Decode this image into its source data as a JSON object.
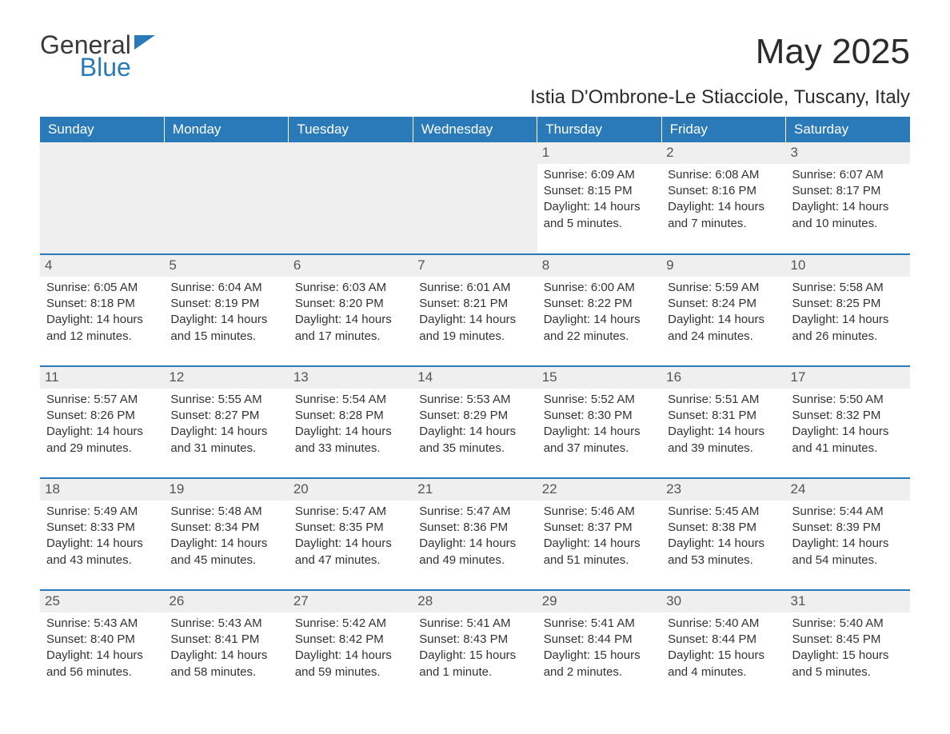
{
  "logo": {
    "word1": "General",
    "word2": "Blue"
  },
  "title": "May 2025",
  "location": "Istia D'Ombrone-Le Stiacciole, Tuscany, Italy",
  "colors": {
    "brand": "#2a7ab9",
    "header_text": "#ffffff",
    "cell_stripe": "#efefef",
    "text": "#333333",
    "bg": "#ffffff"
  },
  "fonts": {
    "title_pt": 44,
    "location_pt": 24,
    "dayhead_pt": 17,
    "body_pt": 15
  },
  "day_headers": [
    "Sunday",
    "Monday",
    "Tuesday",
    "Wednesday",
    "Thursday",
    "Friday",
    "Saturday"
  ],
  "weeks": [
    [
      null,
      null,
      null,
      null,
      {
        "n": "1",
        "sunrise": "6:09 AM",
        "sunset": "8:15 PM",
        "daylight": "14 hours and 5 minutes."
      },
      {
        "n": "2",
        "sunrise": "6:08 AM",
        "sunset": "8:16 PM",
        "daylight": "14 hours and 7 minutes."
      },
      {
        "n": "3",
        "sunrise": "6:07 AM",
        "sunset": "8:17 PM",
        "daylight": "14 hours and 10 minutes."
      }
    ],
    [
      {
        "n": "4",
        "sunrise": "6:05 AM",
        "sunset": "8:18 PM",
        "daylight": "14 hours and 12 minutes."
      },
      {
        "n": "5",
        "sunrise": "6:04 AM",
        "sunset": "8:19 PM",
        "daylight": "14 hours and 15 minutes."
      },
      {
        "n": "6",
        "sunrise": "6:03 AM",
        "sunset": "8:20 PM",
        "daylight": "14 hours and 17 minutes."
      },
      {
        "n": "7",
        "sunrise": "6:01 AM",
        "sunset": "8:21 PM",
        "daylight": "14 hours and 19 minutes."
      },
      {
        "n": "8",
        "sunrise": "6:00 AM",
        "sunset": "8:22 PM",
        "daylight": "14 hours and 22 minutes."
      },
      {
        "n": "9",
        "sunrise": "5:59 AM",
        "sunset": "8:24 PM",
        "daylight": "14 hours and 24 minutes."
      },
      {
        "n": "10",
        "sunrise": "5:58 AM",
        "sunset": "8:25 PM",
        "daylight": "14 hours and 26 minutes."
      }
    ],
    [
      {
        "n": "11",
        "sunrise": "5:57 AM",
        "sunset": "8:26 PM",
        "daylight": "14 hours and 29 minutes."
      },
      {
        "n": "12",
        "sunrise": "5:55 AM",
        "sunset": "8:27 PM",
        "daylight": "14 hours and 31 minutes."
      },
      {
        "n": "13",
        "sunrise": "5:54 AM",
        "sunset": "8:28 PM",
        "daylight": "14 hours and 33 minutes."
      },
      {
        "n": "14",
        "sunrise": "5:53 AM",
        "sunset": "8:29 PM",
        "daylight": "14 hours and 35 minutes."
      },
      {
        "n": "15",
        "sunrise": "5:52 AM",
        "sunset": "8:30 PM",
        "daylight": "14 hours and 37 minutes."
      },
      {
        "n": "16",
        "sunrise": "5:51 AM",
        "sunset": "8:31 PM",
        "daylight": "14 hours and 39 minutes."
      },
      {
        "n": "17",
        "sunrise": "5:50 AM",
        "sunset": "8:32 PM",
        "daylight": "14 hours and 41 minutes."
      }
    ],
    [
      {
        "n": "18",
        "sunrise": "5:49 AM",
        "sunset": "8:33 PM",
        "daylight": "14 hours and 43 minutes."
      },
      {
        "n": "19",
        "sunrise": "5:48 AM",
        "sunset": "8:34 PM",
        "daylight": "14 hours and 45 minutes."
      },
      {
        "n": "20",
        "sunrise": "5:47 AM",
        "sunset": "8:35 PM",
        "daylight": "14 hours and 47 minutes."
      },
      {
        "n": "21",
        "sunrise": "5:47 AM",
        "sunset": "8:36 PM",
        "daylight": "14 hours and 49 minutes."
      },
      {
        "n": "22",
        "sunrise": "5:46 AM",
        "sunset": "8:37 PM",
        "daylight": "14 hours and 51 minutes."
      },
      {
        "n": "23",
        "sunrise": "5:45 AM",
        "sunset": "8:38 PM",
        "daylight": "14 hours and 53 minutes."
      },
      {
        "n": "24",
        "sunrise": "5:44 AM",
        "sunset": "8:39 PM",
        "daylight": "14 hours and 54 minutes."
      }
    ],
    [
      {
        "n": "25",
        "sunrise": "5:43 AM",
        "sunset": "8:40 PM",
        "daylight": "14 hours and 56 minutes."
      },
      {
        "n": "26",
        "sunrise": "5:43 AM",
        "sunset": "8:41 PM",
        "daylight": "14 hours and 58 minutes."
      },
      {
        "n": "27",
        "sunrise": "5:42 AM",
        "sunset": "8:42 PM",
        "daylight": "14 hours and 59 minutes."
      },
      {
        "n": "28",
        "sunrise": "5:41 AM",
        "sunset": "8:43 PM",
        "daylight": "15 hours and 1 minute."
      },
      {
        "n": "29",
        "sunrise": "5:41 AM",
        "sunset": "8:44 PM",
        "daylight": "15 hours and 2 minutes."
      },
      {
        "n": "30",
        "sunrise": "5:40 AM",
        "sunset": "8:44 PM",
        "daylight": "15 hours and 4 minutes."
      },
      {
        "n": "31",
        "sunrise": "5:40 AM",
        "sunset": "8:45 PM",
        "daylight": "15 hours and 5 minutes."
      }
    ]
  ],
  "labels": {
    "sunrise": "Sunrise: ",
    "sunset": "Sunset: ",
    "daylight": "Daylight: "
  }
}
